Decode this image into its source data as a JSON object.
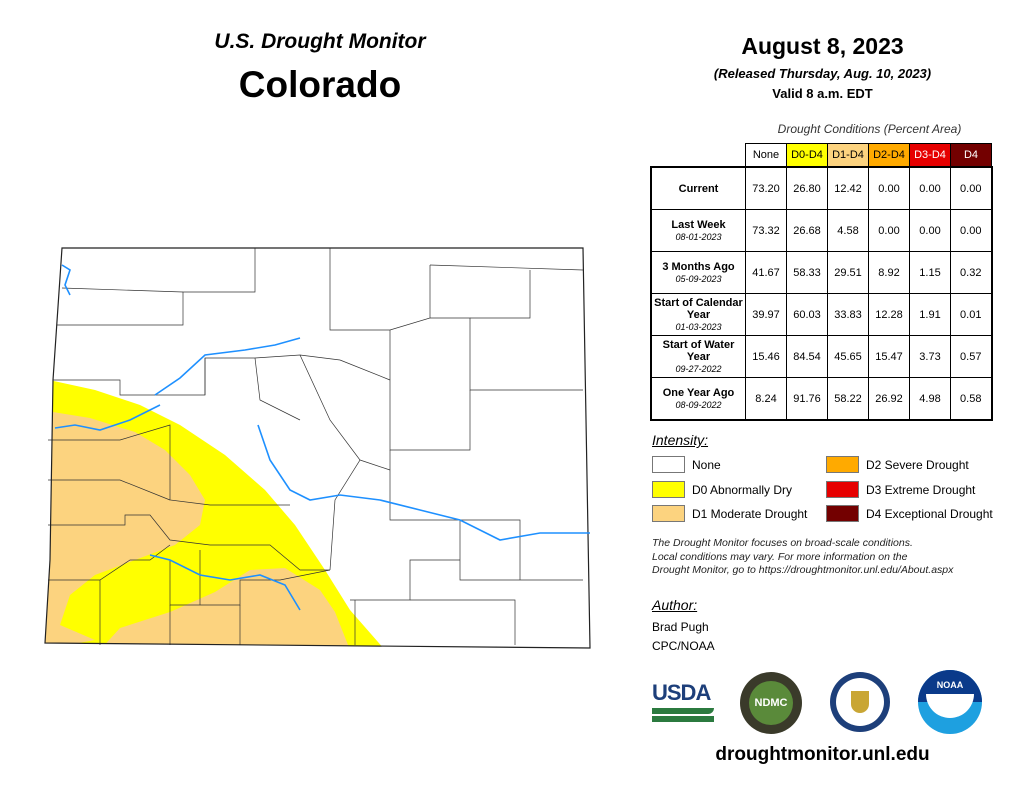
{
  "header": {
    "title": "U.S. Drought Monitor",
    "state": "Colorado",
    "date": "August 8, 2023",
    "released": "(Released Thursday, Aug. 10, 2023)",
    "valid": "Valid 8 a.m. EDT"
  },
  "table": {
    "caption": "Drought Conditions (Percent Area)",
    "columns": [
      {
        "label": "None",
        "bg": "#ffffff",
        "fg": "#000000"
      },
      {
        "label": "D0-D4",
        "bg": "#ffff00",
        "fg": "#000000"
      },
      {
        "label": "D1-D4",
        "bg": "#fcd37f",
        "fg": "#000000"
      },
      {
        "label": "D2-D4",
        "bg": "#ffaa00",
        "fg": "#000000"
      },
      {
        "label": "D3-D4",
        "bg": "#e60000",
        "fg": "#ffffff"
      },
      {
        "label": "D4",
        "bg": "#730000",
        "fg": "#ffffff"
      }
    ],
    "rows": [
      {
        "label": "Current",
        "date": "",
        "values": [
          "73.20",
          "26.80",
          "12.42",
          "0.00",
          "0.00",
          "0.00"
        ]
      },
      {
        "label": "Last Week",
        "date": "08-01-2023",
        "values": [
          "73.32",
          "26.68",
          "4.58",
          "0.00",
          "0.00",
          "0.00"
        ]
      },
      {
        "label": "3 Months Ago",
        "date": "05-09-2023",
        "values": [
          "41.67",
          "58.33",
          "29.51",
          "8.92",
          "1.15",
          "0.32"
        ]
      },
      {
        "label": "Start of Calendar Year",
        "date": "01-03-2023",
        "values": [
          "39.97",
          "60.03",
          "33.83",
          "12.28",
          "1.91",
          "0.01"
        ]
      },
      {
        "label": "Start of Water Year",
        "date": "09-27-2022",
        "values": [
          "15.46",
          "84.54",
          "45.65",
          "15.47",
          "3.73",
          "0.57"
        ]
      },
      {
        "label": "One Year Ago",
        "date": "08-09-2022",
        "values": [
          "8.24",
          "91.76",
          "58.22",
          "26.92",
          "4.98",
          "0.58"
        ]
      }
    ]
  },
  "legend": {
    "title": "Intensity:",
    "items": [
      {
        "label": "None",
        "color": "#ffffff"
      },
      {
        "label": "D0 Abnormally Dry",
        "color": "#ffff00"
      },
      {
        "label": "D1 Moderate Drought",
        "color": "#fcd37f"
      },
      {
        "label": "D2 Severe Drought",
        "color": "#ffaa00"
      },
      {
        "label": "D3 Extreme Drought",
        "color": "#e60000"
      },
      {
        "label": "D4 Exceptional Drought",
        "color": "#730000"
      }
    ]
  },
  "note": [
    "The Drought Monitor focuses on broad-scale conditions.",
    "Local conditions may vary. For more information on the",
    "Drought Monitor, go to https://droughtmonitor.unl.edu/About.aspx"
  ],
  "author": {
    "title": "Author:",
    "name": "Brad Pugh",
    "org": "CPC/NOAA"
  },
  "logos": {
    "usda": "USDA",
    "ndmc": "NDMC",
    "noaa": "NOAA"
  },
  "site": "droughtmonitor.unl.edu"
}
